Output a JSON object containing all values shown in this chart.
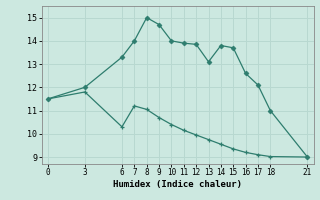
{
  "line1_x": [
    0,
    3,
    6,
    7,
    8,
    9,
    10,
    11,
    12,
    13,
    14,
    15,
    16,
    17,
    18,
    21
  ],
  "line1_y": [
    11.5,
    12.0,
    13.3,
    14.0,
    15.0,
    14.7,
    14.0,
    13.9,
    13.85,
    13.1,
    13.8,
    13.7,
    12.6,
    12.1,
    11.0,
    9.0
  ],
  "line2_x": [
    0,
    3,
    6,
    7,
    8,
    9,
    10,
    11,
    12,
    13,
    14,
    15,
    16,
    17,
    18,
    21
  ],
  "line2_y": [
    11.5,
    11.8,
    10.3,
    11.2,
    11.05,
    10.7,
    10.4,
    10.15,
    9.95,
    9.75,
    9.55,
    9.35,
    9.2,
    9.1,
    9.02,
    9.0
  ],
  "line_color": "#2e7d6e",
  "bg_color": "#cce8e0",
  "grid_color": "#b8d8d0",
  "xlabel": "Humidex (Indice chaleur)",
  "xticks": [
    0,
    3,
    6,
    7,
    8,
    9,
    10,
    11,
    12,
    13,
    14,
    15,
    16,
    17,
    18,
    21
  ],
  "yticks": [
    9,
    10,
    11,
    12,
    13,
    14,
    15
  ],
  "ylim": [
    8.7,
    15.5
  ],
  "xlim": [
    -0.5,
    21.5
  ]
}
